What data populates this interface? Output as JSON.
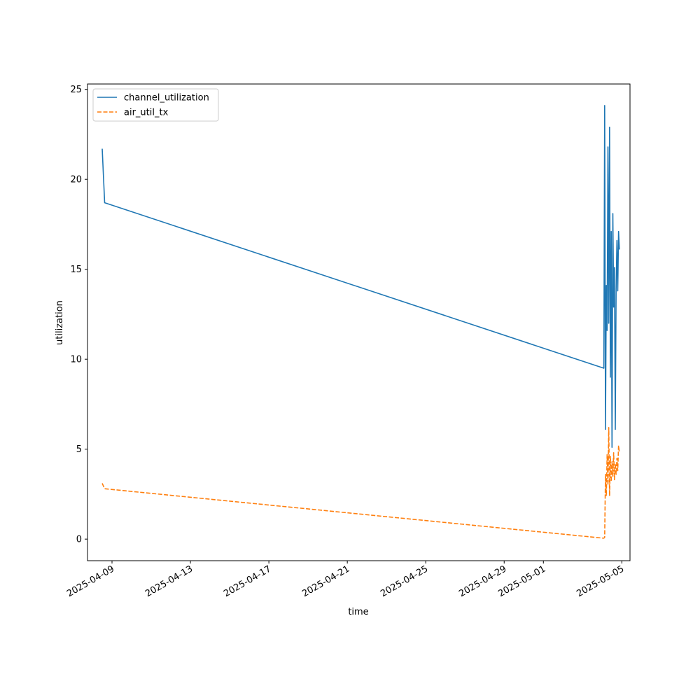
{
  "chart_data": {
    "type": "line",
    "title": "",
    "xlabel": "time",
    "ylabel": "utilization",
    "x_type": "date",
    "xlim": [
      "2025-04-07T18:00",
      "2025-05-05T10:00"
    ],
    "ylim": [
      -1.2,
      25.3
    ],
    "x_ticks": [
      "2025-04-09",
      "2025-04-13",
      "2025-04-17",
      "2025-04-21",
      "2025-04-25",
      "2025-04-29",
      "2025-05-01",
      "2025-05-05"
    ],
    "y_ticks": [
      0,
      5,
      10,
      15,
      20,
      25
    ],
    "grid": false,
    "legend": {
      "position": "top-left",
      "entries": [
        "channel_utilization",
        "air_util_tx"
      ]
    },
    "series": [
      {
        "name": "channel_utilization",
        "color": "#1f77b4",
        "style": "solid",
        "points": [
          [
            "2025-04-08T12:00",
            21.7
          ],
          [
            "2025-04-08T15:00",
            18.7
          ],
          [
            "2025-05-04T02:00",
            9.5
          ],
          [
            "2025-05-04T03:00",
            24.1
          ],
          [
            "2025-05-04T04:00",
            6.1
          ],
          [
            "2025-05-04T05:00",
            14.1
          ],
          [
            "2025-05-04T06:00",
            11.6
          ],
          [
            "2025-05-04T07:00",
            21.8
          ],
          [
            "2025-05-04T08:00",
            12.0
          ],
          [
            "2025-05-04T09:00",
            22.9
          ],
          [
            "2025-05-04T10:00",
            9.0
          ],
          [
            "2025-05-04T11:00",
            17.1
          ],
          [
            "2025-05-04T12:00",
            5.1
          ],
          [
            "2025-05-04T13:00",
            18.1
          ],
          [
            "2025-05-04T14:00",
            12.9
          ],
          [
            "2025-05-04T15:00",
            15.1
          ],
          [
            "2025-05-04T16:00",
            6.1
          ],
          [
            "2025-05-04T17:00",
            13.9
          ],
          [
            "2025-05-04T18:00",
            16.6
          ],
          [
            "2025-05-04T19:00",
            13.8
          ],
          [
            "2025-05-04T20:00",
            17.1
          ],
          [
            "2025-05-04T21:00",
            16.1
          ]
        ]
      },
      {
        "name": "air_util_tx",
        "color": "#ff7f0e",
        "style": "dashed",
        "points": [
          [
            "2025-04-08T12:00",
            3.1
          ],
          [
            "2025-04-08T15:00",
            2.8
          ],
          [
            "2025-05-04T02:00",
            0.05
          ],
          [
            "2025-05-04T03:00",
            0.1
          ],
          [
            "2025-05-04T04:00",
            3.6
          ],
          [
            "2025-05-04T05:00",
            2.4
          ],
          [
            "2025-05-04T06:00",
            4.7
          ],
          [
            "2025-05-04T07:00",
            3.0
          ],
          [
            "2025-05-04T08:00",
            6.2
          ],
          [
            "2025-05-04T09:00",
            2.4
          ],
          [
            "2025-05-04T10:00",
            4.6
          ],
          [
            "2025-05-04T11:00",
            3.2
          ],
          [
            "2025-05-04T12:00",
            4.3
          ],
          [
            "2025-05-04T13:00",
            3.5
          ],
          [
            "2025-05-04T14:00",
            4.8
          ],
          [
            "2025-05-04T15:00",
            3.3
          ],
          [
            "2025-05-04T16:00",
            4.2
          ],
          [
            "2025-05-04T17:00",
            3.6
          ],
          [
            "2025-05-04T18:00",
            4.5
          ],
          [
            "2025-05-04T19:00",
            3.8
          ],
          [
            "2025-05-04T20:00",
            5.2
          ],
          [
            "2025-05-04T21:00",
            4.8
          ]
        ]
      }
    ]
  }
}
